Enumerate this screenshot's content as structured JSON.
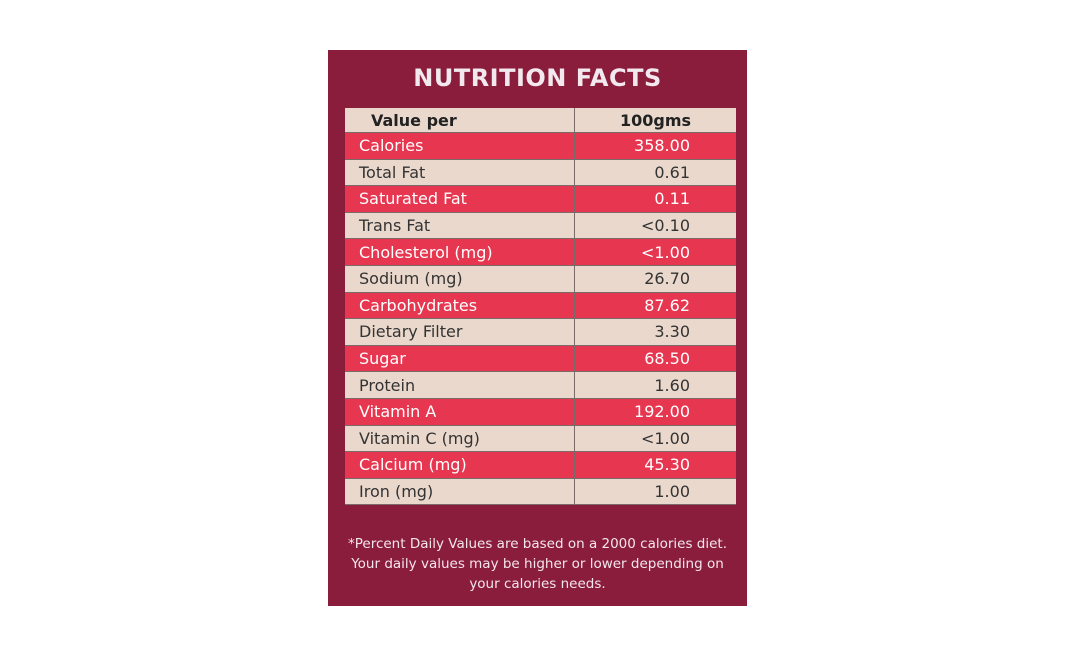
{
  "header": {
    "title": "NUTRITION FACTS"
  },
  "table": {
    "columns": [
      "Value per",
      "100gms"
    ],
    "rows": [
      [
        "Calories",
        "358.00"
      ],
      [
        "Total Fat",
        "0.61"
      ],
      [
        "Saturated Fat",
        "0.11"
      ],
      [
        "Trans Fat",
        "<0.10"
      ],
      [
        "Cholesterol (mg)",
        "<1.00"
      ],
      [
        "Sodium (mg)",
        "26.70"
      ],
      [
        "Carbohydrates",
        "87.62"
      ],
      [
        "Dietary Filter",
        "3.30"
      ],
      [
        "Sugar",
        "68.50"
      ],
      [
        "Protein",
        "1.60"
      ],
      [
        "Vitamin A",
        "192.00"
      ],
      [
        "Vitamin C (mg)",
        "<1.00"
      ],
      [
        "Calcium (mg)",
        "45.30"
      ],
      [
        "Iron (mg)",
        "1.00"
      ]
    ]
  },
  "footer": {
    "lines": [
      "*Percent Daily Values are based on a 2000 calories diet.",
      "Your daily values may be higher or lower depending on",
      "your calories needs."
    ]
  }
}
